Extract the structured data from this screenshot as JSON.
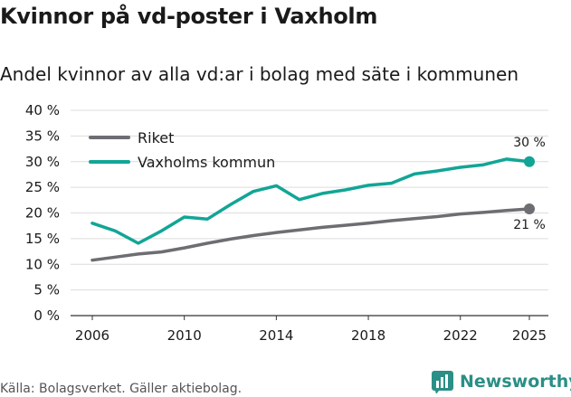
{
  "header": {
    "title": "Kvinnor på vd-poster i Vaxholm",
    "subtitle": "Andel kvinnor av alla vd:ar i bolag med säte i kommunen"
  },
  "footer": {
    "source": "Källa: Bolagsverket. Gäller aktiebolag.",
    "brand": "Newsworthy"
  },
  "chart_data": {
    "type": "line",
    "title": "Kvinnor på vd-poster i Vaxholm",
    "subtitle": "Andel kvinnor av alla vd:ar i bolag med säte i kommunen",
    "xlabel": "",
    "ylabel": "",
    "x": [
      2006,
      2007,
      2008,
      2009,
      2010,
      2011,
      2012,
      2013,
      2014,
      2015,
      2016,
      2017,
      2018,
      2019,
      2020,
      2021,
      2022,
      2023,
      2024,
      2025
    ],
    "xticks": [
      2006,
      2010,
      2014,
      2018,
      2022,
      2025
    ],
    "ylim": [
      0,
      40
    ],
    "yticks": [
      0,
      5,
      10,
      15,
      20,
      25,
      30,
      35,
      40
    ],
    "ytick_labels": [
      "0 %",
      "5 %",
      "10 %",
      "15 %",
      "20 %",
      "25 %",
      "30 %",
      "35 %",
      "40 %"
    ],
    "grid": true,
    "legend_position": "top-left",
    "series": [
      {
        "name": "Riket",
        "color": "#6d6d72",
        "values": [
          10.8,
          11.4,
          12.0,
          12.4,
          13.2,
          14.1,
          14.9,
          15.6,
          16.2,
          16.7,
          17.2,
          17.6,
          18.0,
          18.5,
          18.9,
          19.3,
          19.8,
          20.1,
          20.5,
          20.8
        ],
        "end_label": "21 %"
      },
      {
        "name": "Vaxholms kommun",
        "color": "#12a596",
        "values": [
          18.0,
          16.5,
          14.1,
          16.5,
          19.2,
          18.8,
          21.6,
          24.2,
          25.3,
          22.6,
          23.8,
          24.5,
          25.4,
          25.8,
          27.6,
          28.2,
          28.9,
          29.4,
          30.5,
          30.0
        ],
        "end_label": "30 %"
      }
    ]
  }
}
